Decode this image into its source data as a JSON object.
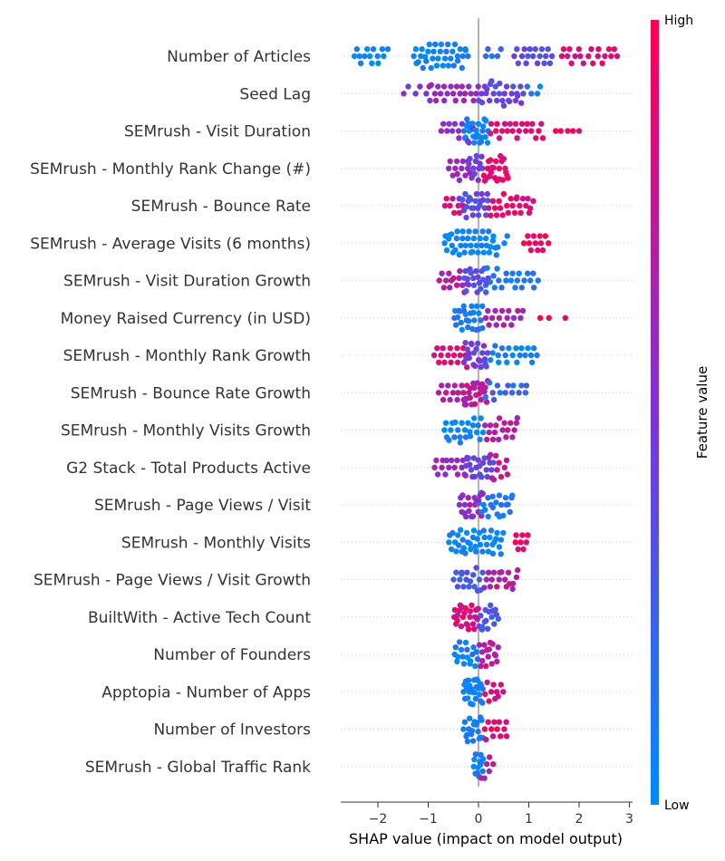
{
  "chart_data": {
    "type": "scatter",
    "subtype": "shap-beeswarm",
    "xlabel": "SHAP value (impact on model output)",
    "xticks": [
      -2,
      -1,
      0,
      1,
      2,
      3
    ],
    "xlim": [
      -2.7,
      3.0
    ],
    "colorbar": {
      "title": "Feature value",
      "high_label": "High",
      "low_label": "Low",
      "low_color": "#008bfb",
      "high_color": "#ff0052"
    },
    "features": [
      {
        "name": "Number of Articles",
        "clusters": [
          {
            "lo": -2.5,
            "hi": -1.8,
            "n": 14,
            "c": 0.0
          },
          {
            "lo": -1.3,
            "hi": -0.2,
            "n": 36,
            "c": 0.05
          },
          {
            "lo": 0.1,
            "hi": 0.5,
            "n": 5,
            "c": 0.15
          },
          {
            "lo": 0.7,
            "hi": 1.5,
            "n": 18,
            "c": 0.35
          },
          {
            "lo": 1.6,
            "hi": 2.8,
            "n": 20,
            "c": 0.85
          }
        ]
      },
      {
        "name": "Seed Lag",
        "clusters": [
          {
            "lo": -1.5,
            "hi": -0.9,
            "n": 6,
            "c": 0.5
          },
          {
            "lo": -1.0,
            "hi": 0.0,
            "n": 22,
            "c": 0.6
          },
          {
            "lo": 0.0,
            "hi": 0.9,
            "n": 28,
            "c": 0.4
          },
          {
            "lo": 0.9,
            "hi": 1.3,
            "n": 4,
            "c": 0.1
          }
        ]
      },
      {
        "name": "SEMrush - Visit Duration",
        "clusters": [
          {
            "lo": -0.8,
            "hi": -0.1,
            "n": 12,
            "c": 0.55
          },
          {
            "lo": -0.3,
            "hi": 0.2,
            "n": 28,
            "c": 0.05
          },
          {
            "lo": 0.2,
            "hi": 1.3,
            "n": 22,
            "c": 0.85
          },
          {
            "lo": 1.5,
            "hi": 2.1,
            "n": 5,
            "c": 0.95
          }
        ]
      },
      {
        "name": "SEMrush - Monthly Rank Change (#)",
        "clusters": [
          {
            "lo": -0.6,
            "hi": -0.1,
            "n": 14,
            "c": 0.6
          },
          {
            "lo": -0.2,
            "hi": 0.1,
            "n": 12,
            "c": 0.45
          },
          {
            "lo": 0.1,
            "hi": 0.6,
            "n": 24,
            "c": 0.9
          }
        ]
      },
      {
        "name": "SEMrush - Bounce Rate",
        "clusters": [
          {
            "lo": -0.7,
            "hi": -0.3,
            "n": 8,
            "c": 0.85
          },
          {
            "lo": -0.4,
            "hi": 0.2,
            "n": 26,
            "c": 0.35
          },
          {
            "lo": 0.2,
            "hi": 1.1,
            "n": 24,
            "c": 0.9
          }
        ]
      },
      {
        "name": "SEMrush - Average Visits (6 months)",
        "clusters": [
          {
            "lo": -0.7,
            "hi": 0.4,
            "n": 40,
            "c": 0.02
          },
          {
            "lo": 0.5,
            "hi": 0.6,
            "n": 2,
            "c": 0.1
          },
          {
            "lo": 0.9,
            "hi": 1.4,
            "n": 12,
            "c": 0.95
          }
        ]
      },
      {
        "name": "SEMrush - Visit Duration Growth",
        "clusters": [
          {
            "lo": -0.8,
            "hi": -0.2,
            "n": 14,
            "c": 0.7
          },
          {
            "lo": -0.3,
            "hi": 0.2,
            "n": 20,
            "c": 0.35
          },
          {
            "lo": 0.1,
            "hi": 1.2,
            "n": 22,
            "c": 0.1
          }
        ]
      },
      {
        "name": "Money Raised Currency (in USD)",
        "clusters": [
          {
            "lo": -0.5,
            "hi": 0.1,
            "n": 26,
            "c": 0.1
          },
          {
            "lo": 0.1,
            "hi": 0.9,
            "n": 16,
            "c": 0.65
          },
          {
            "lo": 1.1,
            "hi": 1.8,
            "n": 3,
            "c": 0.95
          }
        ]
      },
      {
        "name": "SEMrush - Monthly Rank Growth",
        "clusters": [
          {
            "lo": -0.9,
            "hi": -0.2,
            "n": 16,
            "c": 0.85
          },
          {
            "lo": -0.3,
            "hi": 0.2,
            "n": 22,
            "c": 0.45
          },
          {
            "lo": 0.2,
            "hi": 1.2,
            "n": 20,
            "c": 0.05
          }
        ]
      },
      {
        "name": "SEMrush - Bounce Rate Growth",
        "clusters": [
          {
            "lo": -0.8,
            "hi": -0.2,
            "n": 14,
            "c": 0.7
          },
          {
            "lo": -0.3,
            "hi": 0.2,
            "n": 22,
            "c": 0.75
          },
          {
            "lo": 0.1,
            "hi": 1.0,
            "n": 14,
            "c": 0.2
          }
        ]
      },
      {
        "name": "SEMrush - Monthly Visits Growth",
        "clusters": [
          {
            "lo": -0.7,
            "hi": 0.1,
            "n": 24,
            "c": 0.05
          },
          {
            "lo": 0.1,
            "hi": 0.8,
            "n": 18,
            "c": 0.7
          }
        ]
      },
      {
        "name": "G2 Stack - Total Products Active",
        "clusters": [
          {
            "lo": -0.9,
            "hi": -0.2,
            "n": 16,
            "c": 0.6
          },
          {
            "lo": -0.3,
            "hi": 0.3,
            "n": 22,
            "c": 0.4
          },
          {
            "lo": 0.2,
            "hi": 0.6,
            "n": 10,
            "c": 0.8
          }
        ]
      },
      {
        "name": "SEMrush - Page Views / Visit",
        "clusters": [
          {
            "lo": -0.4,
            "hi": 0.1,
            "n": 20,
            "c": 0.6
          },
          {
            "lo": 0.0,
            "hi": 0.7,
            "n": 22,
            "c": 0.1
          }
        ]
      },
      {
        "name": "SEMrush - Monthly Visits",
        "clusters": [
          {
            "lo": -0.6,
            "hi": 0.5,
            "n": 40,
            "c": 0.03
          },
          {
            "lo": 0.7,
            "hi": 1.0,
            "n": 8,
            "c": 0.95
          }
        ]
      },
      {
        "name": "SEMrush - Page Views / Visit Growth",
        "clusters": [
          {
            "lo": -0.5,
            "hi": 0.1,
            "n": 18,
            "c": 0.3
          },
          {
            "lo": 0.1,
            "hi": 0.8,
            "n": 18,
            "c": 0.7
          }
        ]
      },
      {
        "name": "BuiltWith - Active Tech Count",
        "clusters": [
          {
            "lo": -0.5,
            "hi": 0.0,
            "n": 24,
            "c": 0.85
          },
          {
            "lo": 0.0,
            "hi": 0.4,
            "n": 16,
            "c": 0.3
          }
        ]
      },
      {
        "name": "Number of Founders",
        "clusters": [
          {
            "lo": -0.5,
            "hi": 0.0,
            "n": 18,
            "c": 0.1
          },
          {
            "lo": 0.0,
            "hi": 0.4,
            "n": 16,
            "c": 0.7
          }
        ]
      },
      {
        "name": "Apptopia - Number of Apps",
        "clusters": [
          {
            "lo": -0.3,
            "hi": 0.1,
            "n": 26,
            "c": 0.05
          },
          {
            "lo": 0.1,
            "hi": 0.5,
            "n": 10,
            "c": 0.85
          }
        ]
      },
      {
        "name": "Number of Investors",
        "clusters": [
          {
            "lo": -0.3,
            "hi": 0.1,
            "n": 20,
            "c": 0.05
          },
          {
            "lo": 0.1,
            "hi": 0.6,
            "n": 12,
            "c": 0.9
          }
        ]
      },
      {
        "name": "SEMrush - Global Traffic Rank",
        "clusters": [
          {
            "lo": -0.1,
            "hi": 0.1,
            "n": 14,
            "c": 0.05
          },
          {
            "lo": 0.05,
            "hi": 0.3,
            "n": 6,
            "c": 0.7
          }
        ]
      }
    ]
  }
}
